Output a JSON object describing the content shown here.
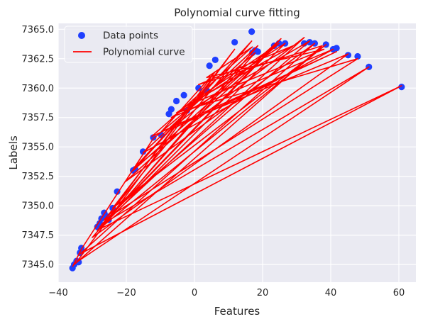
{
  "chart_data": {
    "type": "scatter",
    "title": "Polynomial curve fitting",
    "xlabel": "Features",
    "ylabel": "Labels",
    "xlim": [
      -40,
      65
    ],
    "ylim": [
      7343.5,
      7365.5
    ],
    "xticks": [
      -40,
      -20,
      0,
      20,
      40,
      60
    ],
    "yticks": [
      7345.0,
      7347.5,
      7350.0,
      7352.5,
      7355.0,
      7357.5,
      7360.0,
      7362.5,
      7365.0
    ],
    "grid": true,
    "legend_position": "top-left",
    "series": [
      {
        "name": "Data points",
        "kind": "scatter",
        "color": "#1f3fff",
        "points": [
          [
            -35.8,
            7344.7
          ],
          [
            -35.3,
            7345.0
          ],
          [
            -34.6,
            7345.3
          ],
          [
            -34.0,
            7345.2
          ],
          [
            -33.6,
            7346.0
          ],
          [
            -33.2,
            7346.4
          ],
          [
            -28.5,
            7348.2
          ],
          [
            -27.8,
            7348.5
          ],
          [
            -27.3,
            7348.9
          ],
          [
            -26.5,
            7349.4
          ],
          [
            -25.8,
            7349.1
          ],
          [
            -25.2,
            7348.8
          ],
          [
            -24.0,
            7349.8
          ],
          [
            -22.7,
            7351.2
          ],
          [
            -18.0,
            7353.0
          ],
          [
            -17.4,
            7353.1
          ],
          [
            -15.1,
            7354.6
          ],
          [
            -12.1,
            7355.8
          ],
          [
            -9.7,
            7356.0
          ],
          [
            -7.5,
            7357.8
          ],
          [
            -6.8,
            7358.2
          ],
          [
            -5.3,
            7358.9
          ],
          [
            -3.1,
            7359.4
          ],
          [
            -2.2,
            7358.1
          ],
          [
            1.2,
            7360.0
          ],
          [
            3.6,
            7359.8
          ],
          [
            4.4,
            7361.9
          ],
          [
            6.1,
            7362.4
          ],
          [
            11.8,
            7363.9
          ],
          [
            16.8,
            7364.8
          ],
          [
            17.0,
            7363.0
          ],
          [
            17.8,
            7363.2
          ],
          [
            18.6,
            7363.1
          ],
          [
            23.4,
            7363.6
          ],
          [
            24.8,
            7363.8
          ],
          [
            26.6,
            7363.8
          ],
          [
            32.2,
            7363.8
          ],
          [
            33.8,
            7363.9
          ],
          [
            35.3,
            7363.8
          ],
          [
            38.6,
            7363.7
          ],
          [
            40.7,
            7363.3
          ],
          [
            41.7,
            7363.4
          ],
          [
            45.1,
            7362.8
          ],
          [
            47.9,
            7362.7
          ],
          [
            51.2,
            7361.8
          ],
          [
            60.8,
            7360.1
          ]
        ]
      },
      {
        "name": "Polynomial curve",
        "kind": "line",
        "color": "#ff0000",
        "points": [
          [
            -35.8,
            7344.8
          ],
          [
            -33.2,
            7346.3
          ],
          [
            -22.7,
            7351.0
          ],
          [
            -12.1,
            7355.7
          ],
          [
            17.8,
            7363.0
          ],
          [
            -28.5,
            7347.9
          ],
          [
            38.6,
            7363.7
          ],
          [
            -24.0,
            7349.8
          ],
          [
            11.8,
            7363.3
          ],
          [
            -34.6,
            7345.2
          ],
          [
            51.2,
            7361.8
          ],
          [
            -27.3,
            7348.4
          ],
          [
            25.4,
            7364.2
          ],
          [
            -18.0,
            7353.0
          ],
          [
            -2.2,
            7358.0
          ],
          [
            33.8,
            7364.0
          ],
          [
            -25.2,
            7349.2
          ],
          [
            6.1,
            7361.4
          ],
          [
            -9.7,
            7356.3
          ],
          [
            45.1,
            7362.9
          ],
          [
            -30.0,
            7347.3
          ],
          [
            18.6,
            7363.6
          ],
          [
            -15.1,
            7354.5
          ],
          [
            40.7,
            7363.3
          ],
          [
            -6.8,
            7357.5
          ],
          [
            26.6,
            7363.8
          ],
          [
            -28.0,
            7348.0
          ],
          [
            60.8,
            7360.2
          ],
          [
            -33.6,
            7345.9
          ],
          [
            35.3,
            7363.8
          ],
          [
            -20.5,
            7352.0
          ],
          [
            24.8,
            7363.8
          ],
          [
            -5.3,
            7357.9
          ],
          [
            47.9,
            7362.5
          ],
          [
            -26.5,
            7348.8
          ],
          [
            16.8,
            7364.0
          ],
          [
            -17.4,
            7353.3
          ],
          [
            32.2,
            7364.3
          ],
          [
            -27.8,
            7348.2
          ],
          [
            23.4,
            7363.5
          ],
          [
            -7.5,
            7356.4
          ],
          [
            41.7,
            7363.1
          ],
          [
            -12.5,
            7355.9
          ],
          [
            17.0,
            7363.5
          ],
          [
            3.6,
            7360.9
          ],
          [
            38.0,
            7363.3
          ],
          [
            -3.1,
            7358.4
          ],
          [
            29.0,
            7363.6
          ],
          [
            1.2,
            7360.3
          ],
          [
            37.5,
            7363.6
          ],
          [
            -35.3,
            7345.0
          ],
          [
            -34.0,
            7345.4
          ]
        ]
      }
    ]
  }
}
